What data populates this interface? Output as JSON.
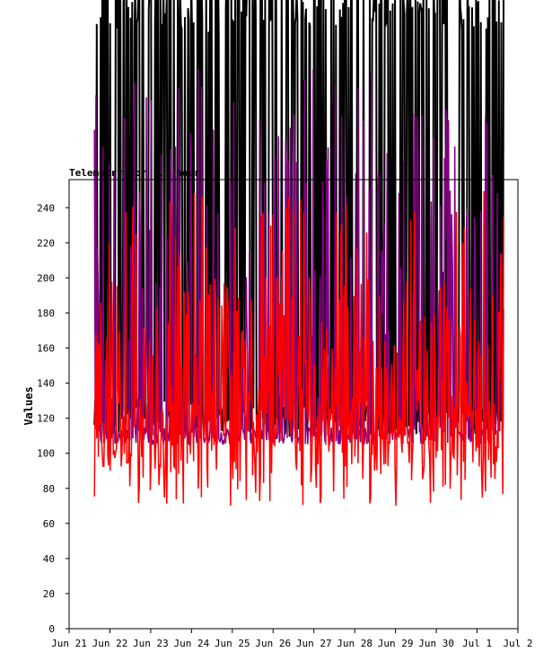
{
  "chart_data": {
    "type": "line",
    "title": "Telemetry for ... hour",
    "xlabel": "",
    "ylabel": "Values",
    "ylim": [
      0,
      256
    ],
    "y_ticks": [
      0,
      20,
      40,
      60,
      80,
      100,
      120,
      140,
      160,
      180,
      200,
      220,
      240
    ],
    "x_ticks": [
      "Jun 21",
      "Jun 22",
      "Jun 23",
      "Jun 24",
      "Jun 25",
      "Jun 26",
      "Jun 27",
      "Jun 28",
      "Jun 29",
      "Jun 30",
      "Jul 1",
      "Jul 2"
    ],
    "x_range_days": [
      0,
      11
    ],
    "data_x_start_day": 0.62,
    "data_x_end_day": 10.65,
    "grid": false,
    "series": [
      {
        "name": "",
        "color": "#000000",
        "baseline": 110,
        "min": 100,
        "max": 380
      },
      {
        "name": "",
        "color": "#800080",
        "baseline": 105,
        "min": 100,
        "max": 320
      },
      {
        "name": "",
        "color": "#ff0000",
        "baseline": 100,
        "min": 60,
        "max": 250
      }
    ]
  }
}
